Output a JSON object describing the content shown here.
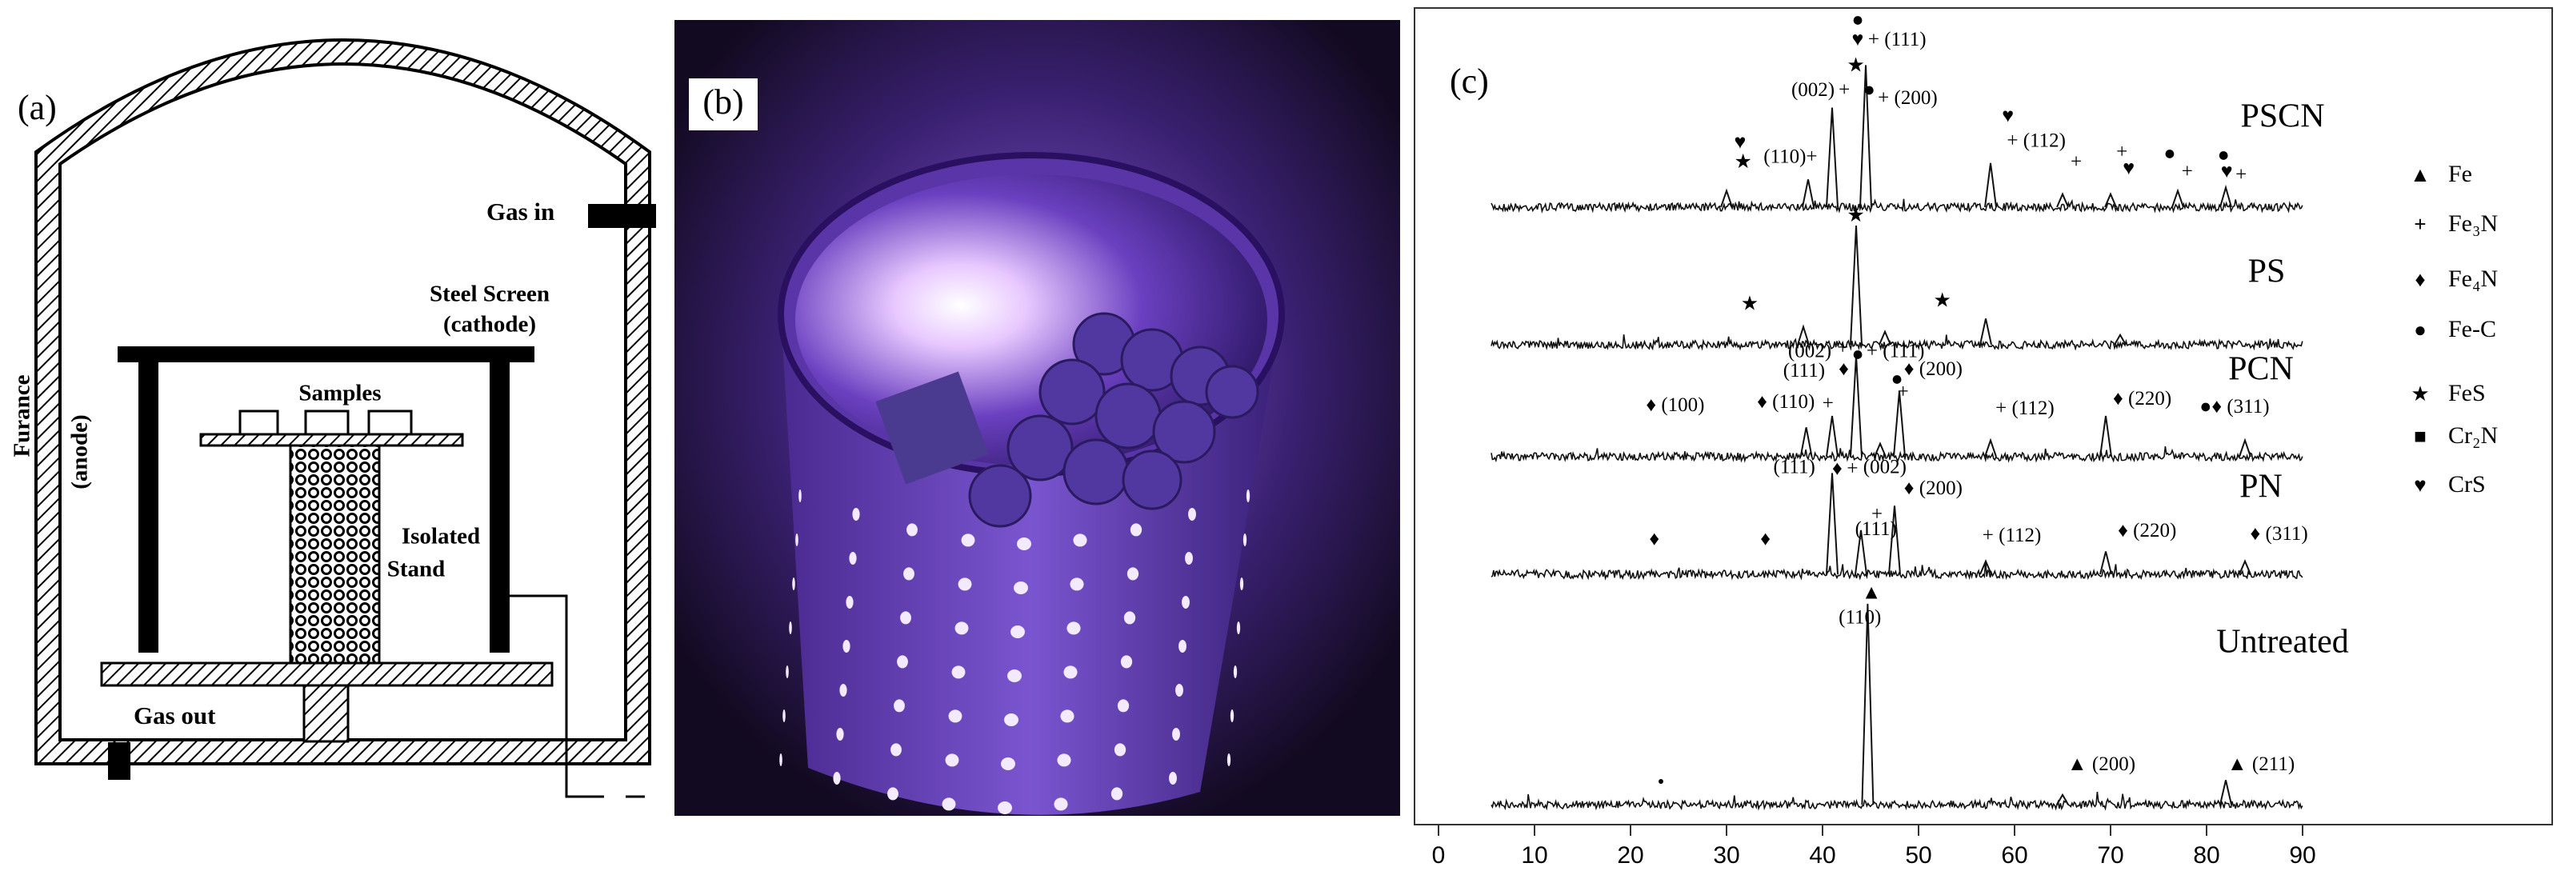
{
  "panel_a": {
    "label": "(a)",
    "gas_in": "Gas in",
    "steel_screen": "Steel Screen",
    "cathode": "(cathode)",
    "samples": "Samples",
    "isolated": "Isolated",
    "stand": "Stand",
    "gas_out": "Gas out",
    "furnace": "Furance",
    "anode": "(anode)"
  },
  "panel_b": {
    "label": "(b)"
  },
  "chart_data": {
    "type": "line",
    "label": "(c)",
    "color": "#111111",
    "xlim": [
      -2.5,
      116
    ],
    "xticks": [
      0,
      10,
      20,
      30,
      40,
      50,
      60,
      70,
      80,
      90
    ],
    "series": [
      {
        "name": "PSCN",
        "x": [
          30,
          38.5,
          41,
          44.5,
          57.5,
          65,
          70,
          77,
          82
        ],
        "values": [
          10,
          17,
          61,
          87,
          27,
          8,
          8,
          10,
          12
        ]
      },
      {
        "name": "PS",
        "x": [
          38,
          43.5,
          46.5,
          57,
          71
        ],
        "values": [
          11,
          73,
          8,
          16,
          6
        ]
      },
      {
        "name": "PCN",
        "x": [
          38.3,
          41,
          43.5,
          46,
          48,
          57.5,
          69.5,
          84
        ],
        "values": [
          18,
          25,
          62,
          8,
          40,
          10,
          25,
          10
        ]
      },
      {
        "name": "PN",
        "x": [
          41,
          44,
          47.5,
          57,
          69.5,
          84
        ],
        "values": [
          62,
          27,
          42,
          8,
          14,
          8
        ]
      },
      {
        "name": "Untreated",
        "x": [
          44.7,
          65,
          82
        ],
        "values": [
          123,
          6,
          15
        ]
      }
    ],
    "annotations": [
      "●",
      "♥",
      "+ (111)",
      "★",
      "(002)",
      "+",
      "●",
      "+ (200)",
      "♥",
      "+ (112)",
      "♥",
      "★",
      "(110)",
      "+",
      "+",
      "+",
      "♥",
      "●",
      "+",
      "●",
      "♥",
      "+",
      "★",
      "★",
      "★",
      "(002)",
      "+",
      "●",
      "+ (111)",
      "(111)",
      "♦",
      "♦ (200)",
      "●",
      "+",
      "♦ (100)",
      "♦ (110)",
      "+",
      "+ (112)",
      "♦ (220)",
      "●♦ (311)",
      "(111)",
      "♦",
      "+",
      "(002)",
      "♦ (200)",
      "+",
      "(111)",
      "♦",
      "♦",
      "+ (112)",
      "♦ (220)",
      "♦ (311)",
      "▲",
      "(110)",
      "▲ (200)",
      "▲ (211)",
      "•"
    ],
    "legend": [
      {
        "symbol": "▲",
        "label": "Fe"
      },
      {
        "symbol": "+",
        "label": "Fe₃N"
      },
      {
        "symbol": "♦",
        "label": "Fe₄N"
      },
      {
        "symbol": "●",
        "label": "Fe-C"
      },
      {
        "symbol": "★",
        "label": "FeS"
      },
      {
        "symbol": "■",
        "label": "Cr₂N"
      },
      {
        "symbol": "♥",
        "label": "CrS"
      }
    ]
  }
}
